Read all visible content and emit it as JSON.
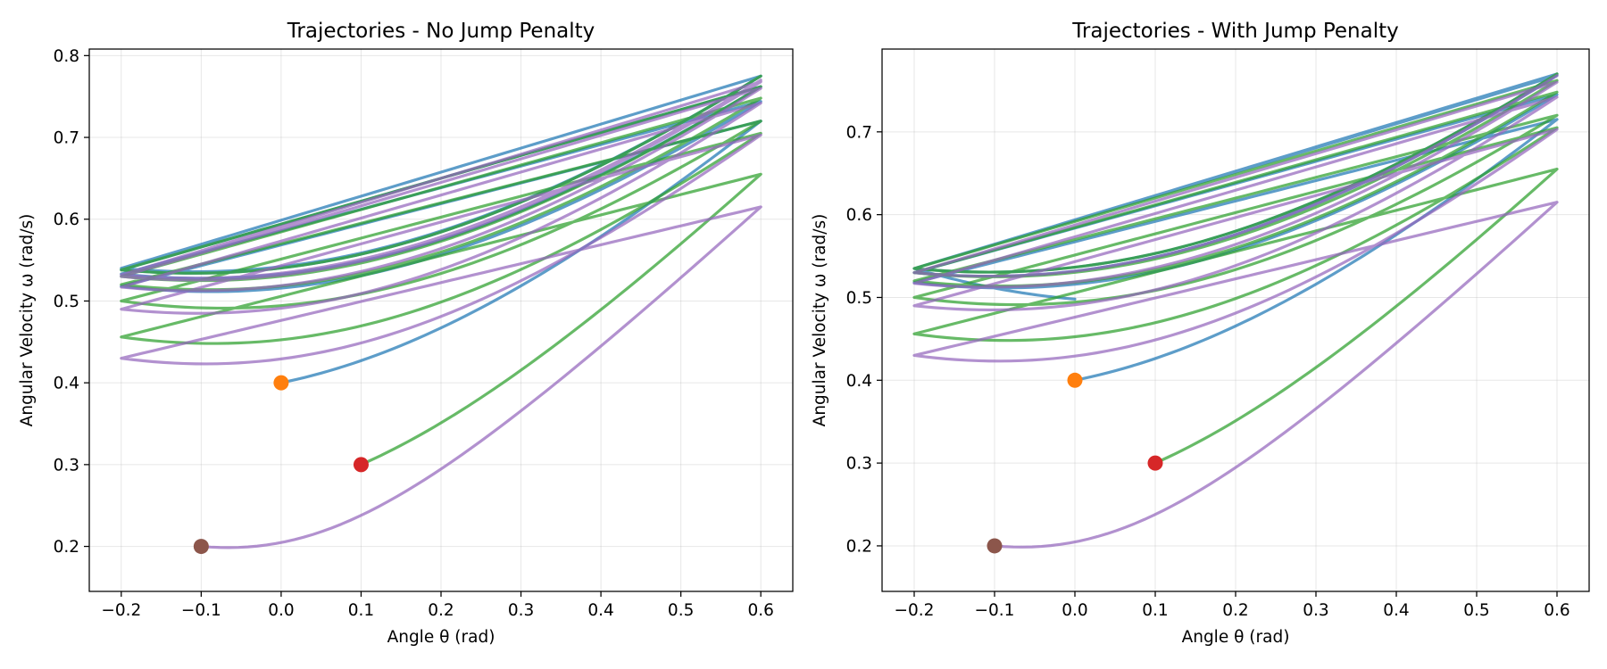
{
  "chart_data": [
    {
      "type": "line",
      "title": "Trajectories - No Jump Penalty",
      "xlabel": "Angle θ (rad)",
      "ylabel": "Angular Velocity ω (rad/s)",
      "xlim": [
        -0.24,
        0.64
      ],
      "ylim": [
        0.145,
        0.808
      ],
      "xticks": [
        -0.2,
        -0.1,
        0.0,
        0.1,
        0.2,
        0.3,
        0.4,
        0.5,
        0.6
      ],
      "xtick_labels": [
        "−0.2",
        "−0.1",
        "0.0",
        "0.1",
        "0.2",
        "0.3",
        "0.4",
        "0.5",
        "0.6"
      ],
      "yticks": [
        0.2,
        0.3,
        0.4,
        0.5,
        0.6,
        0.7,
        0.8
      ],
      "ytick_labels": [
        "0.2",
        "0.3",
        "0.4",
        "0.5",
        "0.6",
        "0.7",
        "0.8"
      ],
      "grid": true,
      "series": [
        {
          "color": "#1f77b4",
          "start": [
            0.0,
            0.4
          ],
          "marker_color": "#ff7f0e",
          "path": [
            [
              0.0,
              0.4
            ],
            [
              0.6,
              0.72
            ],
            [
              -0.2,
              0.518
            ],
            [
              0.6,
              0.744
            ],
            [
              -0.2,
              0.533
            ],
            [
              0.6,
              0.762
            ],
            [
              -0.2,
              0.538
            ],
            [
              0.6,
              0.775
            ],
            [
              -0.2,
              0.54
            ],
            [
              0.6,
              0.775
            ]
          ]
        },
        {
          "color": "#2ca02c",
          "start": [
            0.1,
            0.3
          ],
          "marker_color": "#d62728",
          "path": [
            [
              0.1,
              0.3
            ],
            [
              0.6,
              0.655
            ],
            [
              -0.2,
              0.456
            ],
            [
              0.6,
              0.705
            ],
            [
              -0.2,
              0.5
            ],
            [
              0.6,
              0.72
            ],
            [
              -0.2,
              0.52
            ],
            [
              0.6,
              0.748
            ],
            [
              -0.2,
              0.53
            ],
            [
              0.6,
              0.762
            ],
            [
              -0.2,
              0.538
            ],
            [
              0.6,
              0.775
            ]
          ]
        },
        {
          "color": "#9467bd",
          "start": [
            -0.1,
            0.2
          ],
          "marker_color": "#8c564b",
          "path": [
            [
              -0.1,
              0.2
            ],
            [
              0.6,
              0.615
            ],
            [
              -0.2,
              0.43
            ],
            [
              0.6,
              0.703
            ],
            [
              -0.2,
              0.49
            ],
            [
              0.6,
              0.742
            ],
            [
              -0.2,
              0.517
            ],
            [
              0.6,
              0.76
            ],
            [
              -0.2,
              0.53
            ],
            [
              0.6,
              0.768
            ],
            [
              -0.2,
              0.532
            ],
            [
              0.6,
              0.77
            ]
          ]
        }
      ]
    },
    {
      "type": "line",
      "title": "Trajectories - With Jump Penalty",
      "xlabel": "Angle θ (rad)",
      "ylabel": "Angular Velocity ω (rad/s)",
      "xlim": [
        -0.24,
        0.64
      ],
      "ylim": [
        0.145,
        0.8
      ],
      "xticks": [
        -0.2,
        -0.1,
        0.0,
        0.1,
        0.2,
        0.3,
        0.4,
        0.5,
        0.6
      ],
      "xtick_labels": [
        "−0.2",
        "−0.1",
        "0.0",
        "0.1",
        "0.2",
        "0.3",
        "0.4",
        "0.5",
        "0.6"
      ],
      "yticks": [
        0.2,
        0.3,
        0.4,
        0.5,
        0.6,
        0.7
      ],
      "ytick_labels": [
        "0.2",
        "0.3",
        "0.4",
        "0.5",
        "0.6",
        "0.7"
      ],
      "grid": true,
      "series": [
        {
          "color": "#1f77b4",
          "start": [
            0.0,
            0.4
          ],
          "marker_color": "#ff7f0e",
          "path": [
            [
              0.0,
              0.4
            ],
            [
              0.6,
              0.715
            ],
            [
              -0.2,
              0.518
            ],
            [
              0.6,
              0.745
            ],
            [
              -0.2,
              0.53
            ],
            [
              0.6,
              0.768
            ],
            [
              -0.2,
              0.535
            ],
            [
              0.6,
              0.77
            ],
            [
              -0.2,
              0.535
            ],
            [
              0.0,
              0.498
            ]
          ]
        },
        {
          "color": "#2ca02c",
          "start": [
            0.1,
            0.3
          ],
          "marker_color": "#d62728",
          "path": [
            [
              0.1,
              0.3
            ],
            [
              0.6,
              0.655
            ],
            [
              -0.2,
              0.456
            ],
            [
              0.6,
              0.705
            ],
            [
              -0.2,
              0.5
            ],
            [
              0.6,
              0.72
            ],
            [
              -0.2,
              0.52
            ],
            [
              0.6,
              0.748
            ],
            [
              -0.2,
              0.53
            ],
            [
              0.6,
              0.762
            ],
            [
              -0.2,
              0.535
            ],
            [
              0.6,
              0.77
            ]
          ]
        },
        {
          "color": "#9467bd",
          "start": [
            -0.1,
            0.2
          ],
          "marker_color": "#8c564b",
          "path": [
            [
              -0.1,
              0.2
            ],
            [
              0.6,
              0.615
            ],
            [
              -0.2,
              0.43
            ],
            [
              0.6,
              0.703
            ],
            [
              -0.2,
              0.49
            ],
            [
              0.6,
              0.742
            ],
            [
              -0.2,
              0.517
            ],
            [
              0.6,
              0.76
            ],
            [
              -0.2,
              0.53
            ],
            [
              0.6,
              0.768
            ]
          ]
        }
      ]
    }
  ]
}
